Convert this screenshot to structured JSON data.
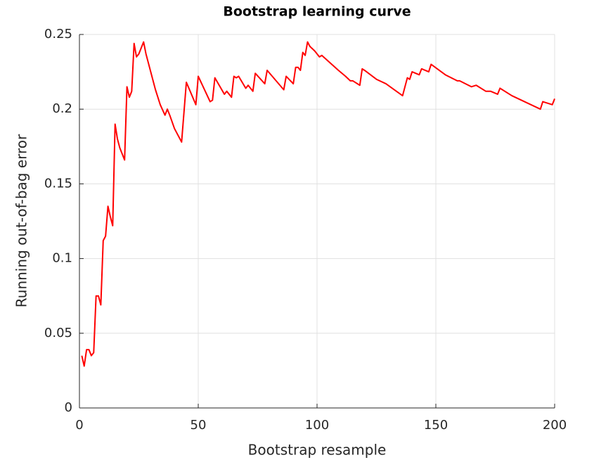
{
  "chart_data": {
    "type": "line",
    "title": "Bootstrap learning curve",
    "x_label": "Bootstrap resample",
    "y_label": "Running out-of-bag error",
    "xlim": [
      0,
      200
    ],
    "ylim": [
      0,
      0.25
    ],
    "xticks": [
      0,
      50,
      100,
      150,
      200
    ],
    "yticks": [
      0,
      0.05,
      0.1,
      0.15,
      0.2,
      0.25
    ],
    "grid": true,
    "series": [
      {
        "color": "#ff0000",
        "x": [
          1,
          2,
          3,
          4,
          5,
          6,
          7,
          8,
          9,
          10,
          11,
          12,
          13,
          14,
          15,
          16,
          17,
          18,
          19,
          20,
          21,
          22,
          23,
          24,
          25,
          27,
          28,
          32,
          34,
          36,
          37,
          38,
          40,
          43,
          45,
          49,
          50,
          55,
          56,
          57,
          61,
          62,
          64,
          65,
          66,
          67,
          70,
          71,
          73,
          74,
          78,
          79,
          86,
          87,
          90,
          91,
          92,
          93,
          94,
          95,
          96,
          97,
          99,
          101,
          102,
          109,
          112,
          114,
          115,
          118,
          119,
          120,
          125,
          129,
          136,
          138,
          139,
          140,
          143,
          144,
          147,
          148,
          154,
          159,
          160,
          165,
          167,
          171,
          173,
          176,
          177,
          182,
          186,
          194,
          195,
          199,
          200
        ],
        "values": [
          0.035,
          0.028,
          0.039,
          0.039,
          0.035,
          0.037,
          0.075,
          0.075,
          0.069,
          0.112,
          0.115,
          0.135,
          0.128,
          0.122,
          0.19,
          0.18,
          0.174,
          0.17,
          0.166,
          0.215,
          0.208,
          0.212,
          0.244,
          0.235,
          0.237,
          0.245,
          0.237,
          0.213,
          0.203,
          0.196,
          0.2,
          0.196,
          0.187,
          0.178,
          0.218,
          0.203,
          0.222,
          0.205,
          0.206,
          0.221,
          0.21,
          0.212,
          0.208,
          0.222,
          0.221,
          0.222,
          0.214,
          0.216,
          0.212,
          0.224,
          0.217,
          0.226,
          0.213,
          0.222,
          0.217,
          0.228,
          0.228,
          0.226,
          0.238,
          0.236,
          0.245,
          0.242,
          0.239,
          0.235,
          0.236,
          0.226,
          0.222,
          0.219,
          0.219,
          0.216,
          0.227,
          0.226,
          0.22,
          0.217,
          0.209,
          0.221,
          0.22,
          0.225,
          0.223,
          0.227,
          0.225,
          0.23,
          0.223,
          0.219,
          0.219,
          0.215,
          0.216,
          0.212,
          0.212,
          0.21,
          0.214,
          0.209,
          0.206,
          0.2,
          0.205,
          0.203,
          0.207
        ]
      }
    ]
  }
}
